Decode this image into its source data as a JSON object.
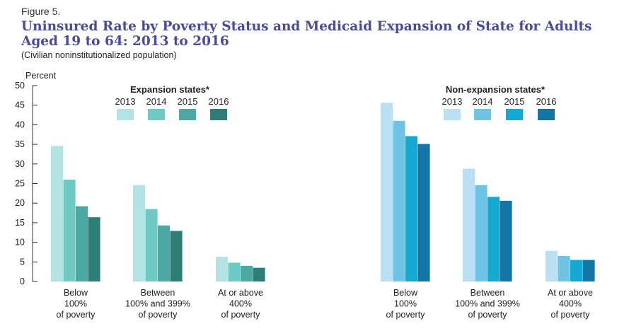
{
  "figure_label": "Figure 5.",
  "subtitle": "(Civilian noninstitutionalized population)",
  "chart_data": {
    "type": "bar",
    "title": "Uninsured Rate by Poverty Status and Medicaid Expansion of State for Adults Aged 19 to 64: 2013 to 2016",
    "ylabel": "Percent",
    "ylim": [
      0,
      50
    ],
    "yticks": [
      0,
      5,
      10,
      15,
      20,
      25,
      30,
      35,
      40,
      45,
      50
    ],
    "grid": false,
    "years": [
      "2013",
      "2014",
      "2015",
      "2016"
    ],
    "panels": [
      {
        "name": "Expansion states*",
        "colors": [
          "#b3e3e3",
          "#6dcbc4",
          "#4aa9a2",
          "#2e7d76"
        ],
        "groups": [
          {
            "label": [
              "Below",
              "100%",
              "of poverty"
            ],
            "values": [
              34.6,
              26.0,
              19.2,
              16.4
            ]
          },
          {
            "label": [
              "Between",
              "100% and 399%",
              "of poverty"
            ],
            "values": [
              24.6,
              18.5,
              14.3,
              12.9
            ]
          },
          {
            "label": [
              "At or above",
              "400%",
              "of poverty"
            ],
            "values": [
              6.3,
              4.8,
              4.0,
              3.5
            ]
          }
        ]
      },
      {
        "name": "Non-expansion states*",
        "colors": [
          "#bbdff3",
          "#6ec4e4",
          "#14a9d2",
          "#1277a6"
        ],
        "groups": [
          {
            "label": [
              "Below",
              "100%",
              "of poverty"
            ],
            "values": [
              45.6,
              41.0,
              37.1,
              35.1
            ]
          },
          {
            "label": [
              "Between",
              "100% and 399%",
              "of poverty"
            ],
            "values": [
              28.8,
              24.6,
              21.6,
              20.6
            ]
          },
          {
            "label": [
              "At or above",
              "400%",
              "of poverty"
            ],
            "values": [
              7.8,
              6.5,
              5.5,
              5.5
            ]
          }
        ]
      }
    ]
  }
}
